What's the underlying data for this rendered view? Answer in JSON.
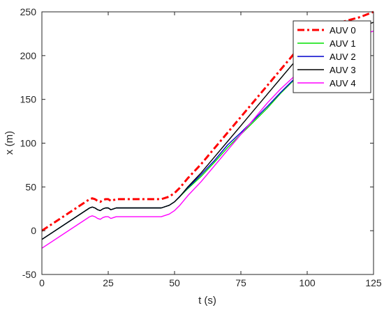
{
  "chart_data": {
    "type": "line",
    "title": "",
    "xlabel": "t (s)",
    "ylabel": "x (m)",
    "xlim": [
      0,
      125
    ],
    "ylim": [
      -50,
      250
    ],
    "xticks": [
      0,
      25,
      50,
      75,
      100,
      125
    ],
    "yticks": [
      -50,
      0,
      50,
      100,
      150,
      200,
      250
    ],
    "grid": false,
    "legend": "top-right",
    "series": [
      {
        "name": "AUV 0",
        "color": "#ff0000",
        "style": "dashdot",
        "points": [
          [
            0,
            0
          ],
          [
            18,
            36
          ],
          [
            19,
            37
          ],
          [
            20,
            36
          ],
          [
            21,
            34
          ],
          [
            22,
            33
          ],
          [
            23,
            35
          ],
          [
            24,
            36
          ],
          [
            25,
            36
          ],
          [
            26,
            34
          ],
          [
            27,
            35
          ],
          [
            28,
            36
          ],
          [
            30,
            36
          ],
          [
            40,
            36
          ],
          [
            45,
            36
          ],
          [
            48,
            39
          ],
          [
            50,
            43
          ],
          [
            52,
            49
          ],
          [
            55,
            60
          ],
          [
            60,
            76
          ],
          [
            65,
            94
          ],
          [
            70,
            112
          ],
          [
            75,
            130
          ],
          [
            80,
            148
          ],
          [
            85,
            166
          ],
          [
            90,
            184
          ],
          [
            95,
            202
          ],
          [
            100,
            220
          ],
          [
            105,
            230
          ],
          [
            110,
            236
          ],
          [
            115,
            240
          ],
          [
            120,
            244
          ],
          [
            125,
            250
          ]
        ]
      },
      {
        "name": "AUV 1",
        "color": "#00e000",
        "style": "solid",
        "points": [
          [
            0,
            -10
          ],
          [
            18,
            26
          ],
          [
            19,
            27
          ],
          [
            20,
            26
          ],
          [
            21,
            24
          ],
          [
            22,
            23
          ],
          [
            23,
            25
          ],
          [
            24,
            26
          ],
          [
            25,
            26
          ],
          [
            26,
            24
          ],
          [
            27,
            25
          ],
          [
            28,
            26
          ],
          [
            30,
            26
          ],
          [
            45,
            26
          ],
          [
            48,
            29
          ],
          [
            50,
            33
          ],
          [
            55,
            48
          ],
          [
            60,
            62
          ],
          [
            65,
            78
          ],
          [
            70,
            95
          ],
          [
            75,
            110
          ],
          [
            80,
            125
          ],
          [
            85,
            140
          ],
          [
            90,
            157
          ],
          [
            95,
            172
          ],
          [
            100,
            190
          ]
        ]
      },
      {
        "name": "AUV 2",
        "color": "#0000cc",
        "style": "solid",
        "points": [
          [
            0,
            -10
          ],
          [
            18,
            26
          ],
          [
            19,
            27
          ],
          [
            20,
            26
          ],
          [
            21,
            24
          ],
          [
            22,
            23
          ],
          [
            23,
            25
          ],
          [
            24,
            26
          ],
          [
            25,
            26
          ],
          [
            26,
            24
          ],
          [
            27,
            25
          ],
          [
            28,
            26
          ],
          [
            30,
            26
          ],
          [
            45,
            26
          ],
          [
            48,
            29
          ],
          [
            50,
            33
          ],
          [
            55,
            49
          ],
          [
            60,
            64
          ],
          [
            65,
            80
          ],
          [
            70,
            98
          ],
          [
            75,
            112
          ],
          [
            80,
            127
          ],
          [
            85,
            142
          ],
          [
            90,
            158
          ],
          [
            95,
            173
          ],
          [
            100,
            190
          ]
        ]
      },
      {
        "name": "AUV 3",
        "color": "#000000",
        "style": "solid",
        "points": [
          [
            0,
            -10
          ],
          [
            18,
            26
          ],
          [
            19,
            27
          ],
          [
            20,
            26
          ],
          [
            21,
            24
          ],
          [
            22,
            23
          ],
          [
            23,
            25
          ],
          [
            24,
            26
          ],
          [
            25,
            26
          ],
          [
            26,
            24
          ],
          [
            27,
            25
          ],
          [
            28,
            26
          ],
          [
            30,
            26
          ],
          [
            45,
            26
          ],
          [
            48,
            29
          ],
          [
            50,
            33
          ],
          [
            52,
            39
          ],
          [
            55,
            50
          ],
          [
            60,
            66
          ],
          [
            65,
            84
          ],
          [
            70,
            102
          ],
          [
            75,
            120
          ],
          [
            80,
            138
          ],
          [
            85,
            156
          ],
          [
            90,
            174
          ],
          [
            95,
            192
          ],
          [
            100,
            206
          ],
          [
            105,
            217
          ],
          [
            110,
            223
          ],
          [
            115,
            228
          ],
          [
            120,
            233
          ],
          [
            125,
            238
          ]
        ]
      },
      {
        "name": "AUV 4",
        "color": "#ff00ff",
        "style": "solid",
        "points": [
          [
            0,
            -20
          ],
          [
            18,
            16
          ],
          [
            19,
            17
          ],
          [
            20,
            16
          ],
          [
            21,
            14
          ],
          [
            22,
            13
          ],
          [
            23,
            15
          ],
          [
            24,
            16
          ],
          [
            25,
            16
          ],
          [
            26,
            14
          ],
          [
            27,
            15
          ],
          [
            28,
            16
          ],
          [
            30,
            16
          ],
          [
            45,
            16
          ],
          [
            48,
            19
          ],
          [
            50,
            23
          ],
          [
            52,
            29
          ],
          [
            55,
            40
          ],
          [
            60,
            56
          ],
          [
            65,
            74
          ],
          [
            70,
            92
          ],
          [
            75,
            110
          ],
          [
            80,
            128
          ],
          [
            85,
            146
          ],
          [
            90,
            162
          ],
          [
            95,
            176
          ],
          [
            100,
            192
          ],
          [
            105,
            206
          ],
          [
            110,
            212
          ],
          [
            115,
            218
          ],
          [
            120,
            223
          ],
          [
            125,
            228
          ]
        ]
      }
    ]
  }
}
